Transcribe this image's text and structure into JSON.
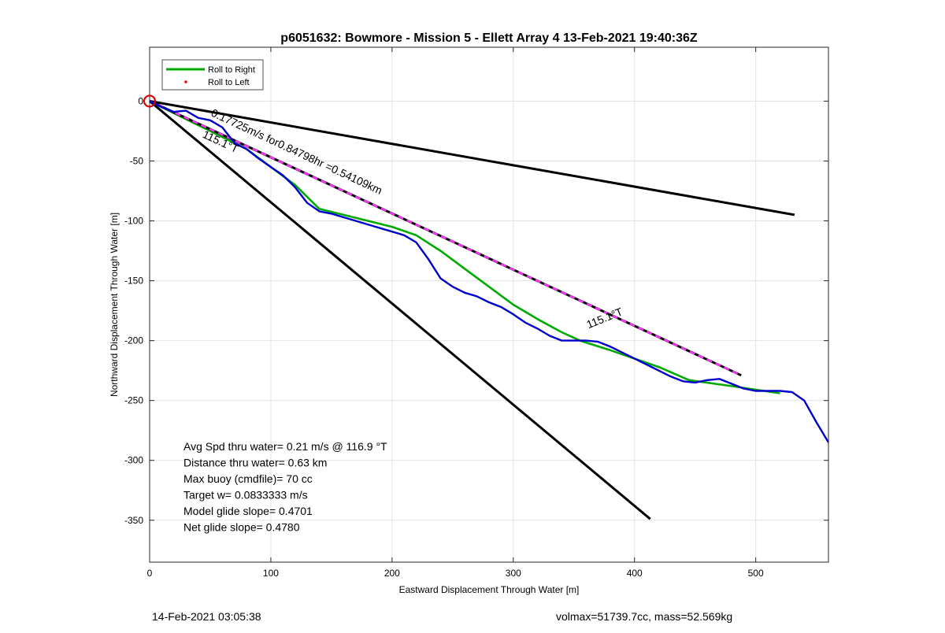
{
  "chart_data": {
    "type": "line",
    "title": "p6051632: Bowmore - Mission 5 - Ellett Array 4 13-Feb-2021 19:40:36Z",
    "xlabel": "Eastward Displacement Through Water [m]",
    "ylabel": "Northward Displacement Through Water [m]",
    "xlim": [
      0,
      560
    ],
    "ylim": [
      -385,
      45
    ],
    "xticks": [
      0,
      100,
      200,
      300,
      400,
      500
    ],
    "yticks": [
      0,
      -50,
      -100,
      -150,
      -200,
      -250,
      -300,
      -350
    ],
    "grid": true,
    "legend_position": "top-left",
    "legend": [
      {
        "label": "Roll to Right",
        "color": "#00aa00",
        "style": "line"
      },
      {
        "label": "Roll to Left",
        "color": "#ff0000",
        "style": "dot"
      }
    ],
    "series": [
      {
        "name": "Roll to Right",
        "color": "#00aa00",
        "x": [
          0,
          20,
          40,
          60,
          80,
          100,
          120,
          140,
          160,
          180,
          200,
          220,
          240,
          260,
          280,
          300,
          320,
          340,
          355,
          380,
          420,
          445,
          480,
          520
        ],
        "y": [
          0,
          -10,
          -20,
          -30,
          -40,
          -55,
          -70,
          -90,
          -95,
          -100,
          -105,
          -112,
          -125,
          -140,
          -155,
          -170,
          -182,
          -193,
          -200,
          -208,
          -222,
          -233,
          -238,
          -244
        ]
      },
      {
        "name": "track",
        "color": "#0000cc",
        "x": [
          0,
          10,
          20,
          30,
          40,
          50,
          60,
          70,
          80,
          90,
          100,
          110,
          120,
          130,
          140,
          150,
          160,
          170,
          180,
          190,
          200,
          210,
          220,
          230,
          240,
          250,
          260,
          270,
          280,
          290,
          300,
          310,
          320,
          330,
          340,
          350,
          360,
          370,
          380,
          390,
          400,
          410,
          420,
          430,
          440,
          450,
          460,
          470,
          480,
          490,
          500,
          510,
          520,
          530,
          540,
          550,
          560
        ],
        "y": [
          0,
          -5,
          -9,
          -8,
          -14,
          -16,
          -22,
          -35,
          -40,
          -48,
          -55,
          -62,
          -72,
          -85,
          -92,
          -94,
          -97,
          -100,
          -103,
          -106,
          -109,
          -112,
          -118,
          -132,
          -148,
          -155,
          -160,
          -163,
          -168,
          -172,
          -178,
          -185,
          -190,
          -196,
          -200,
          -200,
          -200,
          -201,
          -205,
          -210,
          -215,
          -220,
          -225,
          -230,
          -234,
          -235,
          -233,
          -232,
          -236,
          -240,
          -242,
          -242,
          -242,
          -243,
          -250,
          -268,
          -285
        ]
      },
      {
        "name": "heading-line-115.1",
        "color": "#000000",
        "x": [
          0,
          488
        ],
        "y": [
          0,
          -229
        ]
      },
      {
        "name": "upper-bound",
        "color": "#000000",
        "x": [
          0,
          532
        ],
        "y": [
          0,
          -95
        ]
      },
      {
        "name": "lower-bound",
        "color": "#000000",
        "x": [
          0,
          413
        ],
        "y": [
          0,
          -349
        ]
      }
    ],
    "annotations": [
      {
        "text": "0.17725m/s for0.84798hr =0.54109km",
        "x": 50,
        "y": -12,
        "rotation": -25
      },
      {
        "text": "115.1°T",
        "x": 43,
        "y": -30,
        "rotation": -25
      },
      {
        "text": "115.1°T",
        "x": 362,
        "y": -190,
        "rotation": 22
      }
    ],
    "stats": [
      "Avg Spd thru water=  0.21 m/s @ 116.9 °T",
      "Distance thru water=  0.63 km",
      "Max buoy (cmdfile)= 70 cc",
      "Target w= 0.0833333 m/s",
      "Model glide slope= 0.4701",
      "Net glide slope= 0.4780"
    ]
  },
  "footer": {
    "timestamp": "14-Feb-2021 03:05:38",
    "info": "volmax=51739.7cc, mass=52.569kg"
  }
}
